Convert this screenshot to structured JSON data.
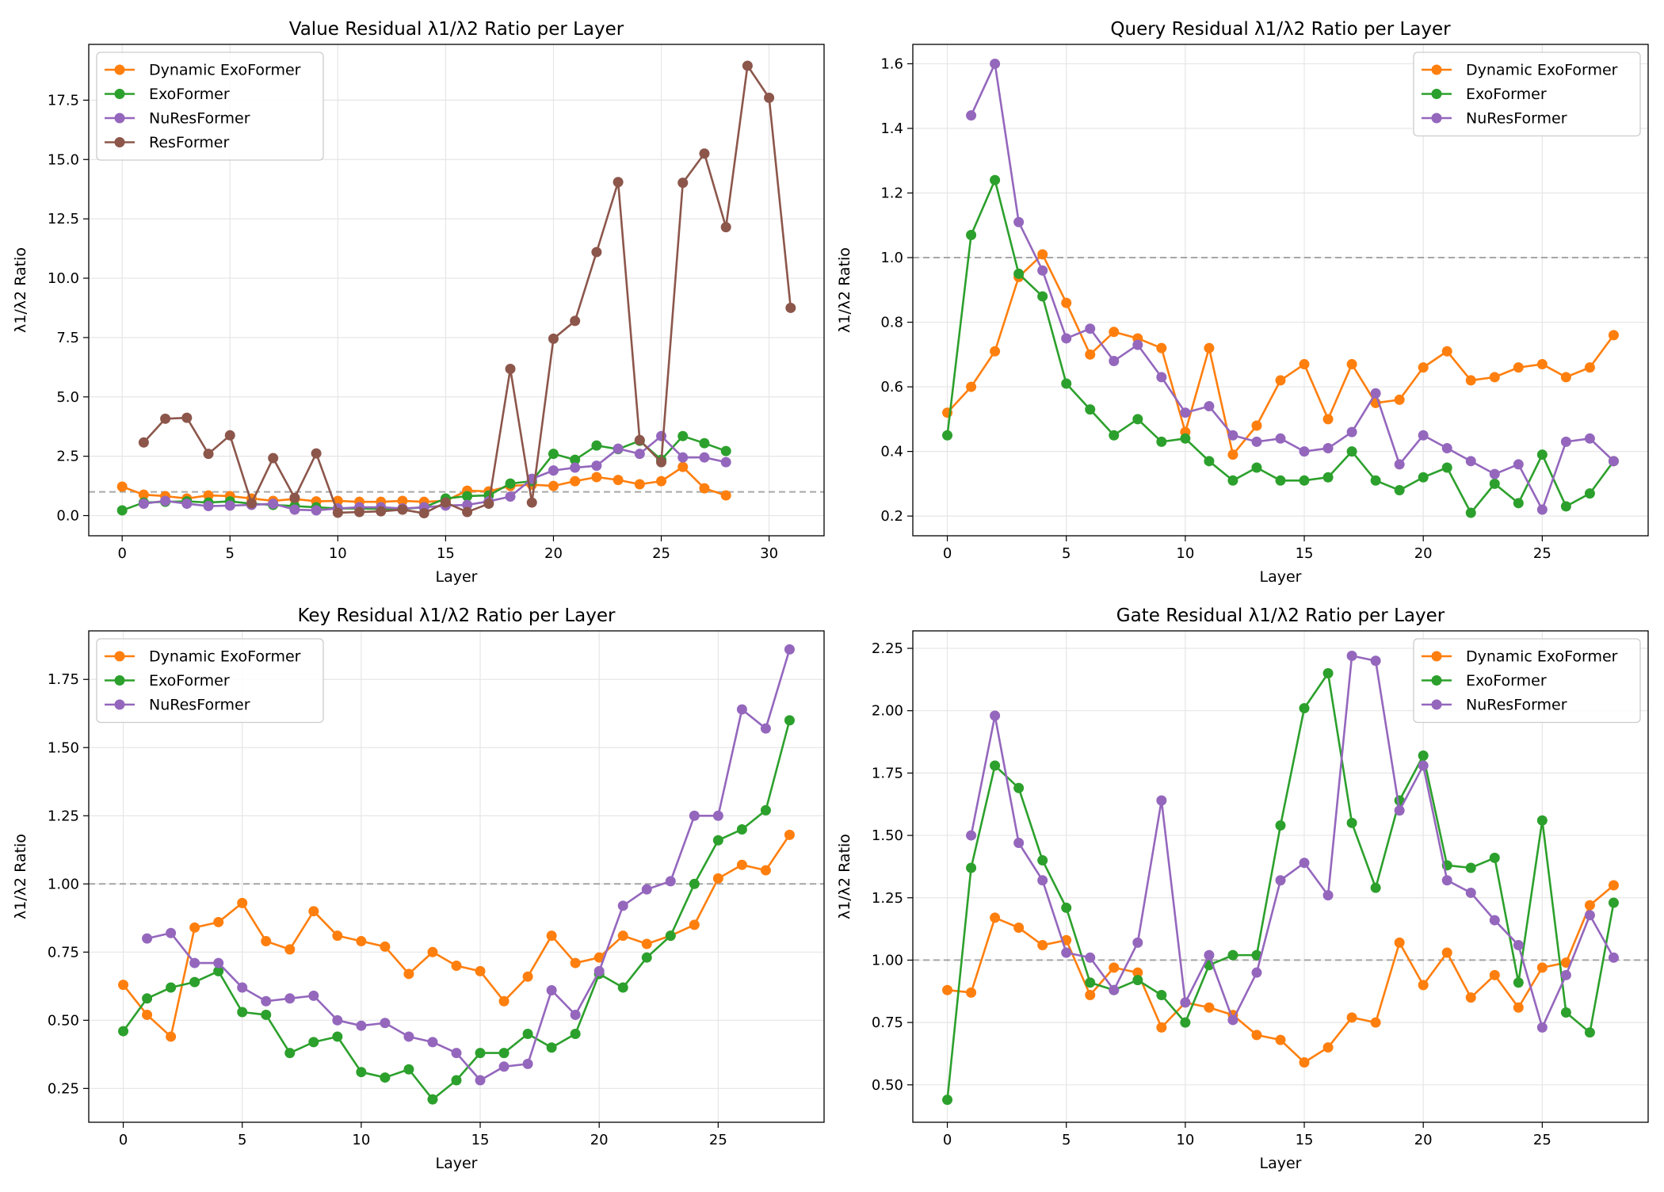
{
  "figure": {
    "panel_count": 4
  },
  "colors": {
    "Dynamic ExoFormer": "#ff7f0e",
    "ExoFormer": "#2ca02c",
    "NuResFormer": "#9467bd",
    "ResFormer": "#8c564b",
    "reference": "#999999",
    "grid": "#e6e6e6"
  },
  "chart_data": [
    {
      "type": "line",
      "title": "Value Residual λ1/λ2 Ratio per Layer",
      "xlabel": "Layer",
      "ylabel": "λ1/λ2 Ratio",
      "xlim": [
        -1.55,
        32.55
      ],
      "ylim": [
        -0.85,
        19.85
      ],
      "xticks": [
        0,
        5,
        10,
        15,
        20,
        25,
        30
      ],
      "yticks": [
        0.0,
        2.5,
        5.0,
        7.5,
        10.0,
        12.5,
        15.0,
        17.5
      ],
      "ytick_labels": [
        "0.0",
        "2.5",
        "5.0",
        "7.5",
        "10.0",
        "12.5",
        "15.0",
        "17.5"
      ],
      "reference_line": 1.0,
      "legend_position": "upper left",
      "grid": true,
      "series": [
        {
          "name": "Dynamic ExoFormer",
          "x": [
            0,
            1,
            2,
            3,
            4,
            5,
            6,
            7,
            8,
            9,
            10,
            11,
            12,
            13,
            14,
            15,
            16,
            17,
            18,
            19,
            20,
            21,
            22,
            23,
            24,
            25,
            26,
            27,
            28
          ],
          "values": [
            1.22,
            0.88,
            0.82,
            0.72,
            0.85,
            0.82,
            0.72,
            0.62,
            0.7,
            0.6,
            0.62,
            0.58,
            0.58,
            0.62,
            0.58,
            0.62,
            1.05,
            1.02,
            1.25,
            1.3,
            1.25,
            1.45,
            1.62,
            1.5,
            1.32,
            1.45,
            2.05,
            1.15,
            0.85
          ]
        },
        {
          "name": "ExoFormer",
          "x": [
            0,
            1,
            2,
            3,
            4,
            5,
            6,
            7,
            8,
            9,
            10,
            11,
            12,
            13,
            14,
            15,
            16,
            17,
            18,
            19,
            20,
            21,
            22,
            23,
            24,
            25,
            26,
            27,
            28
          ],
          "values": [
            0.22,
            0.55,
            0.58,
            0.6,
            0.55,
            0.6,
            0.5,
            0.45,
            0.4,
            0.35,
            0.3,
            0.3,
            0.28,
            0.28,
            0.35,
            0.72,
            0.82,
            0.85,
            1.35,
            1.45,
            2.6,
            2.35,
            2.95,
            2.8,
            3.15,
            2.35,
            3.35,
            3.05,
            2.72
          ]
        },
        {
          "name": "NuResFormer",
          "x": [
            1,
            2,
            3,
            4,
            5,
            6,
            7,
            8,
            9,
            10,
            11,
            12,
            13,
            14,
            15,
            16,
            17,
            18,
            19,
            20,
            21,
            22,
            23,
            24,
            25,
            26,
            27,
            28
          ],
          "values": [
            0.5,
            0.62,
            0.5,
            0.4,
            0.42,
            0.45,
            0.5,
            0.25,
            0.22,
            0.3,
            0.35,
            0.35,
            0.3,
            0.35,
            0.42,
            0.45,
            0.6,
            0.8,
            1.55,
            1.9,
            2.02,
            2.1,
            2.82,
            2.6,
            3.35,
            2.45,
            2.45,
            2.25
          ]
        },
        {
          "name": "ResFormer",
          "x": [
            1,
            2,
            3,
            4,
            5,
            6,
            7,
            8,
            9,
            10,
            11,
            12,
            13,
            14,
            15,
            16,
            17,
            18,
            19,
            20,
            21,
            22,
            23,
            24,
            25,
            26,
            27,
            28,
            29,
            30,
            31
          ],
          "values": [
            3.08,
            4.08,
            4.12,
            2.6,
            3.38,
            0.52,
            2.42,
            0.75,
            2.62,
            0.12,
            0.15,
            0.18,
            0.25,
            0.1,
            0.55,
            0.15,
            0.5,
            6.18,
            0.55,
            7.45,
            8.2,
            11.1,
            14.05,
            3.18,
            2.25,
            14.02,
            15.25,
            12.15,
            18.95,
            17.6,
            8.75
          ]
        }
      ]
    },
    {
      "type": "line",
      "title": "Query Residual λ1/λ2 Ratio per Layer",
      "xlabel": "Layer",
      "ylabel": "λ1/λ2 Ratio",
      "xlim": [
        -1.45,
        29.45
      ],
      "ylim": [
        0.139,
        1.66
      ],
      "xticks": [
        0,
        5,
        10,
        15,
        20,
        25
      ],
      "yticks": [
        0.2,
        0.4,
        0.6,
        0.8,
        1.0,
        1.2,
        1.4,
        1.6
      ],
      "ytick_labels": [
        "0.2",
        "0.4",
        "0.6",
        "0.8",
        "1.0",
        "1.2",
        "1.4",
        "1.6"
      ],
      "reference_line": 1.0,
      "legend_position": "upper right",
      "grid": true,
      "series": [
        {
          "name": "Dynamic ExoFormer",
          "x": [
            0,
            1,
            2,
            3,
            4,
            5,
            6,
            7,
            8,
            9,
            10,
            11,
            12,
            13,
            14,
            15,
            16,
            17,
            18,
            19,
            20,
            21,
            22,
            23,
            24,
            25,
            26,
            27,
            28
          ],
          "values": [
            0.52,
            0.6,
            0.71,
            0.94,
            1.01,
            0.86,
            0.7,
            0.77,
            0.75,
            0.72,
            0.46,
            0.72,
            0.39,
            0.48,
            0.62,
            0.67,
            0.5,
            0.67,
            0.55,
            0.56,
            0.66,
            0.71,
            0.62,
            0.63,
            0.66,
            0.67,
            0.63,
            0.66,
            0.76
          ]
        },
        {
          "name": "ExoFormer",
          "x": [
            0,
            1,
            2,
            3,
            4,
            5,
            6,
            7,
            8,
            9,
            10,
            11,
            12,
            13,
            14,
            15,
            16,
            17,
            18,
            19,
            20,
            21,
            22,
            23,
            24,
            25,
            26,
            27,
            28
          ],
          "values": [
            0.45,
            1.07,
            1.24,
            0.95,
            0.88,
            0.61,
            0.53,
            0.45,
            0.5,
            0.43,
            0.44,
            0.37,
            0.31,
            0.35,
            0.31,
            0.31,
            0.32,
            0.4,
            0.31,
            0.28,
            0.32,
            0.35,
            0.21,
            0.3,
            0.24,
            0.39,
            0.23,
            0.27,
            0.37
          ]
        },
        {
          "name": "NuResFormer",
          "x": [
            1,
            2,
            3,
            4,
            5,
            6,
            7,
            8,
            9,
            10,
            11,
            12,
            13,
            14,
            15,
            16,
            17,
            18,
            19,
            20,
            21,
            22,
            23,
            24,
            25,
            26,
            27,
            28
          ],
          "values": [
            1.44,
            1.6,
            1.11,
            0.96,
            0.75,
            0.78,
            0.68,
            0.73,
            0.63,
            0.52,
            0.54,
            0.45,
            0.43,
            0.44,
            0.4,
            0.41,
            0.46,
            0.58,
            0.36,
            0.45,
            0.41,
            0.37,
            0.33,
            0.36,
            0.22,
            0.43,
            0.44,
            0.37
          ]
        }
      ]
    },
    {
      "type": "line",
      "title": "Key Residual λ1/λ2 Ratio per Layer",
      "xlabel": "Layer",
      "ylabel": "λ1/λ2 Ratio",
      "xlim": [
        -1.45,
        29.45
      ],
      "ylim": [
        0.126,
        1.928
      ],
      "xticks": [
        0,
        5,
        10,
        15,
        20,
        25
      ],
      "yticks": [
        0.25,
        0.5,
        0.75,
        1.0,
        1.25,
        1.5,
        1.75
      ],
      "ytick_labels": [
        "0.25",
        "0.50",
        "0.75",
        "1.00",
        "1.25",
        "1.50",
        "1.75"
      ],
      "reference_line": 1.0,
      "legend_position": "upper left",
      "grid": true,
      "series": [
        {
          "name": "Dynamic ExoFormer",
          "x": [
            0,
            1,
            2,
            3,
            4,
            5,
            6,
            7,
            8,
            9,
            10,
            11,
            12,
            13,
            14,
            15,
            16,
            17,
            18,
            19,
            20,
            21,
            22,
            23,
            24,
            25,
            26,
            27,
            28
          ],
          "values": [
            0.63,
            0.52,
            0.44,
            0.84,
            0.86,
            0.93,
            0.79,
            0.76,
            0.9,
            0.81,
            0.79,
            0.77,
            0.67,
            0.75,
            0.7,
            0.68,
            0.57,
            0.66,
            0.81,
            0.71,
            0.73,
            0.81,
            0.78,
            0.81,
            0.85,
            1.02,
            1.07,
            1.05,
            1.18
          ]
        },
        {
          "name": "ExoFormer",
          "x": [
            0,
            1,
            2,
            3,
            4,
            5,
            6,
            7,
            8,
            9,
            10,
            11,
            12,
            13,
            14,
            15,
            16,
            17,
            18,
            19,
            20,
            21,
            22,
            23,
            24,
            25,
            26,
            27,
            28
          ],
          "values": [
            0.46,
            0.58,
            0.62,
            0.64,
            0.68,
            0.53,
            0.52,
            0.38,
            0.42,
            0.44,
            0.31,
            0.29,
            0.32,
            0.21,
            0.28,
            0.38,
            0.38,
            0.45,
            0.4,
            0.45,
            0.67,
            0.62,
            0.73,
            0.81,
            1.0,
            1.16,
            1.2,
            1.27,
            1.6
          ]
        },
        {
          "name": "NuResFormer",
          "x": [
            1,
            2,
            3,
            4,
            5,
            6,
            7,
            8,
            9,
            10,
            11,
            12,
            13,
            14,
            15,
            16,
            17,
            18,
            19,
            20,
            21,
            22,
            23,
            24,
            25,
            26,
            27,
            28
          ],
          "values": [
            0.8,
            0.82,
            0.71,
            0.71,
            0.62,
            0.57,
            0.58,
            0.59,
            0.5,
            0.48,
            0.49,
            0.44,
            0.42,
            0.38,
            0.28,
            0.33,
            0.34,
            0.61,
            0.52,
            0.68,
            0.92,
            0.98,
            1.01,
            1.25,
            1.25,
            1.64,
            1.57,
            1.86
          ]
        }
      ]
    },
    {
      "type": "line",
      "title": "Gate Residual λ1/λ2 Ratio per Layer",
      "xlabel": "Layer",
      "ylabel": "λ1/λ2 Ratio",
      "xlim": [
        -1.45,
        29.45
      ],
      "ylim": [
        0.35,
        2.32
      ],
      "xticks": [
        0,
        5,
        10,
        15,
        20,
        25
      ],
      "yticks": [
        0.5,
        0.75,
        1.0,
        1.25,
        1.5,
        1.75,
        2.0,
        2.25
      ],
      "ytick_labels": [
        "0.50",
        "0.75",
        "1.00",
        "1.25",
        "1.50",
        "1.75",
        "2.00",
        "2.25"
      ],
      "reference_line": 1.0,
      "legend_position": "upper right",
      "grid": true,
      "series": [
        {
          "name": "Dynamic ExoFormer",
          "x": [
            0,
            1,
            2,
            3,
            4,
            5,
            6,
            7,
            8,
            9,
            10,
            11,
            12,
            13,
            14,
            15,
            16,
            17,
            18,
            19,
            20,
            21,
            22,
            23,
            24,
            25,
            26,
            27,
            28
          ],
          "values": [
            0.88,
            0.87,
            1.17,
            1.13,
            1.06,
            1.08,
            0.86,
            0.97,
            0.95,
            0.73,
            0.83,
            0.81,
            0.78,
            0.7,
            0.68,
            0.59,
            0.65,
            0.77,
            0.75,
            1.07,
            0.9,
            1.03,
            0.85,
            0.94,
            0.81,
            0.97,
            0.99,
            1.22,
            1.3
          ]
        },
        {
          "name": "ExoFormer",
          "x": [
            0,
            1,
            2,
            3,
            4,
            5,
            6,
            7,
            8,
            9,
            10,
            11,
            12,
            13,
            14,
            15,
            16,
            17,
            18,
            19,
            20,
            21,
            22,
            23,
            24,
            25,
            26,
            27,
            28
          ],
          "values": [
            0.44,
            1.37,
            1.78,
            1.69,
            1.4,
            1.21,
            0.91,
            0.88,
            0.92,
            0.86,
            0.75,
            0.98,
            1.02,
            1.02,
            1.54,
            2.01,
            2.15,
            1.55,
            1.29,
            1.64,
            1.82,
            1.38,
            1.37,
            1.41,
            0.91,
            1.56,
            0.79,
            0.71,
            1.23
          ]
        },
        {
          "name": "NuResFormer",
          "x": [
            1,
            2,
            3,
            4,
            5,
            6,
            7,
            8,
            9,
            10,
            11,
            12,
            13,
            14,
            15,
            16,
            17,
            18,
            19,
            20,
            21,
            22,
            23,
            24,
            25,
            26,
            27,
            28
          ],
          "values": [
            1.5,
            1.98,
            1.47,
            1.32,
            1.03,
            1.01,
            0.88,
            1.07,
            1.64,
            0.83,
            1.02,
            0.76,
            0.95,
            1.32,
            1.39,
            1.26,
            2.22,
            2.2,
            1.6,
            1.78,
            1.32,
            1.27,
            1.16,
            1.06,
            0.73,
            0.94,
            1.18,
            1.01
          ]
        }
      ]
    }
  ]
}
